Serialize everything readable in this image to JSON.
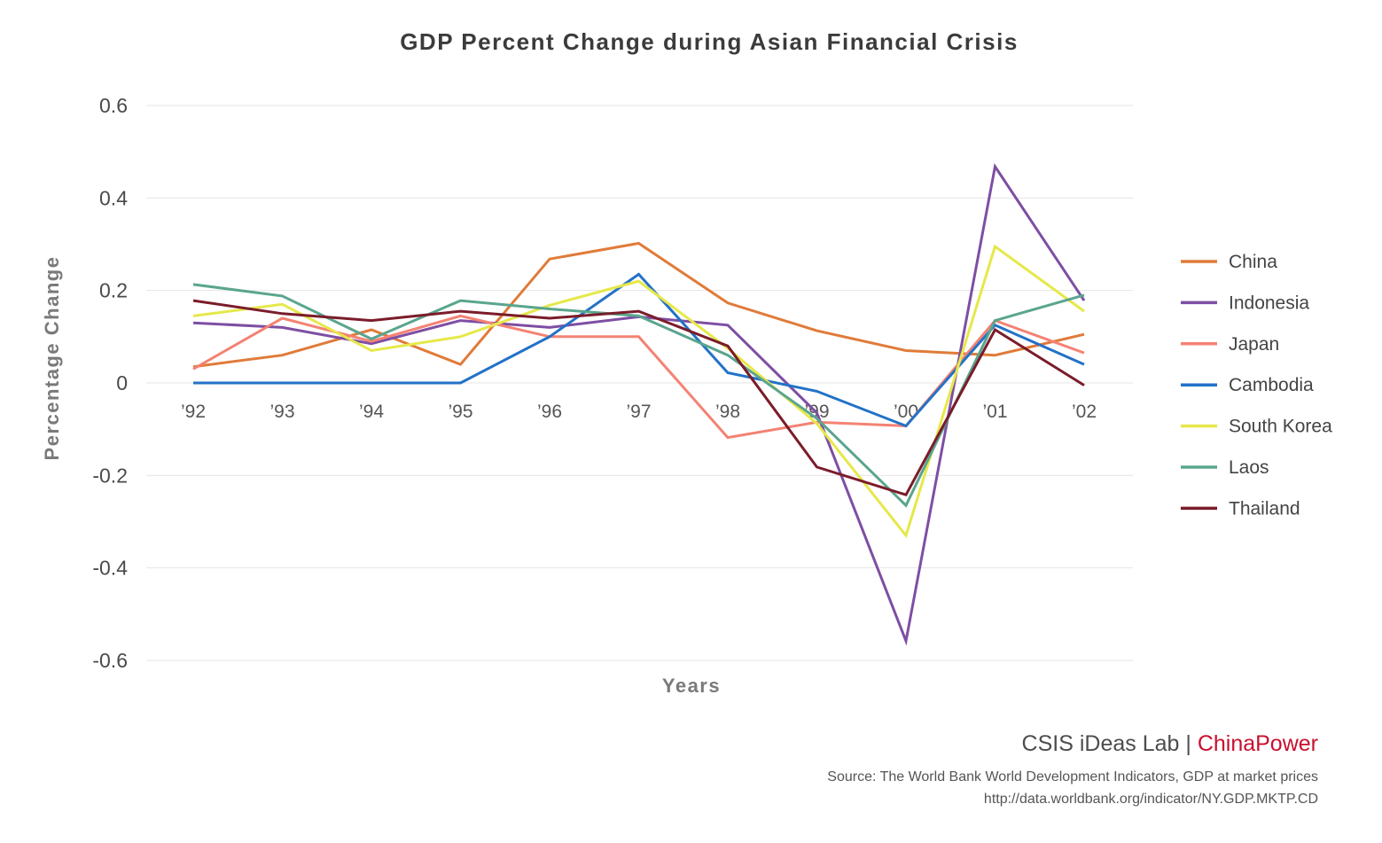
{
  "chart_data": {
    "type": "line",
    "title": "GDP Percent Change during Asian Financial Crisis",
    "xlabel": "Years",
    "ylabel": "Percentage Change",
    "categories": [
      "’92",
      "’93",
      "’94",
      "’95",
      "’96",
      "’97",
      "’98",
      "’99",
      "’00",
      "’01",
      "’02"
    ],
    "ylim": [
      -0.6,
      0.6
    ],
    "yticks": [
      0.6,
      0.4,
      0.2,
      0,
      -0.2,
      -0.4,
      -0.6
    ],
    "ytick_labels": [
      "0.6",
      "0.4",
      "0.2",
      "0",
      "-0.2",
      "-0.4",
      "-0.6"
    ],
    "grid": true,
    "legend_position": "right",
    "series": [
      {
        "name": "China",
        "color": "#e07b39",
        "values": [
          0.035,
          0.06,
          0.115,
          0.04,
          0.268,
          0.302,
          0.173,
          0.113,
          0.07,
          0.06,
          0.105
        ]
      },
      {
        "name": "Indonesia",
        "color": "#7e4ea3",
        "values": [
          0.13,
          0.12,
          0.085,
          0.135,
          0.12,
          0.143,
          0.125,
          -0.065,
          -0.558,
          0.468,
          0.178
        ]
      },
      {
        "name": "Japan",
        "color": "#f48273",
        "values": [
          0.03,
          0.14,
          0.09,
          0.145,
          0.1,
          0.1,
          -0.118,
          -0.085,
          -0.093,
          0.135,
          0.065
        ]
      },
      {
        "name": "Cambodia",
        "color": "#2272c7",
        "values": [
          0.0,
          0.0,
          0.0,
          0.0,
          0.1,
          0.235,
          0.022,
          -0.018,
          -0.093,
          0.125,
          0.04
        ]
      },
      {
        "name": "South Korea",
        "color": "#e6e84a",
        "values": [
          0.145,
          0.17,
          0.07,
          0.1,
          0.168,
          0.22,
          0.075,
          -0.088,
          -0.33,
          0.295,
          0.155
        ]
      },
      {
        "name": "Laos",
        "color": "#5aa58e",
        "values": [
          0.213,
          0.188,
          0.095,
          0.178,
          0.16,
          0.145,
          0.06,
          -0.077,
          -0.265,
          0.135,
          0.19
        ]
      },
      {
        "name": "Thailand",
        "color": "#7b1c2a",
        "values": [
          0.178,
          0.15,
          0.135,
          0.155,
          0.14,
          0.155,
          0.08,
          -0.182,
          -0.242,
          0.115,
          -0.005
        ]
      }
    ]
  },
  "branding": {
    "main": "CSIS iDeas Lab | ",
    "accent": "ChinaPower"
  },
  "source": {
    "line1": "Source:  The World Bank World Development Indicators, GDP at market prices",
    "line2": "http://data.worldbank.org/indicator/NY.GDP.MKTP.CD"
  }
}
